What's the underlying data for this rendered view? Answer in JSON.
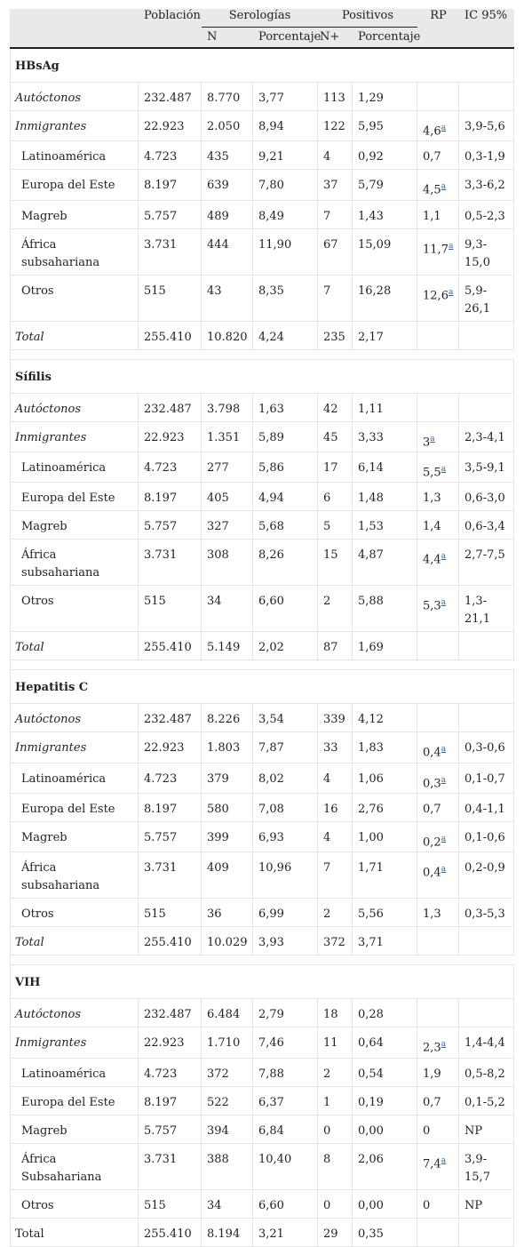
{
  "header": {
    "poblacion": "Población",
    "serologias": "Serologías",
    "positivos": "Positivos",
    "rp": "RP",
    "ic": "IC 95%",
    "n": "N",
    "porcentaje": "Porcentaje",
    "npos": "N+",
    "porcentaje2": "Porcentaje"
  },
  "footnote_marker": "a",
  "sections": [
    {
      "title": "HBsAg",
      "rows": [
        {
          "label": "Autóctonos",
          "style": "ital",
          "pob": "232.487",
          "n": "8.770",
          "pct": "3,77",
          "npos": "113",
          "pct2": "1,29",
          "rp": "",
          "rp_sup": false,
          "ic": ""
        },
        {
          "label": "Inmigrantes",
          "style": "ital",
          "pob": "22.923",
          "n": "2.050",
          "pct": "8,94",
          "npos": "122",
          "pct2": "5,95",
          "rp": "4,6",
          "rp_sup": true,
          "ic": "3,9-5,6"
        },
        {
          "label": "Latinoamérica",
          "style": "ind",
          "pob": "4.723",
          "n": "435",
          "pct": "9,21",
          "npos": "4",
          "pct2": "0,92",
          "rp": "0,7",
          "rp_sup": false,
          "ic": "0,3-1,9"
        },
        {
          "label": "Europa del Este",
          "style": "ind",
          "pob": "8.197",
          "n": "639",
          "pct": "7,80",
          "npos": "37",
          "pct2": "5,79",
          "rp": "4,5",
          "rp_sup": true,
          "ic": "3,3-6,2"
        },
        {
          "label": "Magreb",
          "style": "ind",
          "pob": "5.757",
          "n": "489",
          "pct": "8,49",
          "npos": "7",
          "pct2": "1,43",
          "rp": "1,1",
          "rp_sup": false,
          "ic": "0,5-2,3"
        },
        {
          "label": "África subsahariana",
          "style": "ind tall",
          "pob": "3.731",
          "n": "444",
          "pct": "11,90",
          "npos": "67",
          "pct2": "15,09",
          "rp": "11,7",
          "rp_sup": true,
          "ic": "9,3-15,0"
        },
        {
          "label": "Otros",
          "style": "ind tall",
          "pob": "515",
          "n": "43",
          "pct": "8,35",
          "npos": "7",
          "pct2": "16,28",
          "rp": "12,6",
          "rp_sup": true,
          "ic": "5,9-26,1"
        },
        {
          "label": "Total",
          "style": "ital",
          "pob": "255.410",
          "n": "10.820",
          "pct": "4,24",
          "npos": "235",
          "pct2": "2,17",
          "rp": "",
          "rp_sup": false,
          "ic": ""
        }
      ]
    },
    {
      "title": "Sífilis",
      "rows": [
        {
          "label": "Autóctonos",
          "style": "ital",
          "pob": "232.487",
          "n": "3.798",
          "pct": "1,63",
          "npos": "42",
          "pct2": "1,11",
          "rp": "",
          "rp_sup": false,
          "ic": ""
        },
        {
          "label": "Inmigrantes",
          "style": "ital",
          "pob": "22.923",
          "n": "1.351",
          "pct": "5,89",
          "npos": "45",
          "pct2": "3,33",
          "rp": "3",
          "rp_sup": true,
          "ic": "2,3-4,1"
        },
        {
          "label": "Latinoamérica",
          "style": "ind",
          "pob": "4.723",
          "n": "277",
          "pct": "5,86",
          "npos": "17",
          "pct2": "6,14",
          "rp": "5,5",
          "rp_sup": true,
          "ic": "3,5-9,1"
        },
        {
          "label": "Europa del Este",
          "style": "ind",
          "pob": "8.197",
          "n": "405",
          "pct": "4,94",
          "npos": "6",
          "pct2": "1,48",
          "rp": "1,3",
          "rp_sup": false,
          "ic": "0,6-3,0"
        },
        {
          "label": "Magreb",
          "style": "ind",
          "pob": "5.757",
          "n": "327",
          "pct": "5,68",
          "npos": "5",
          "pct2": "1,53",
          "rp": "1,4",
          "rp_sup": false,
          "ic": "0,6-3,4"
        },
        {
          "label": "África subsahariana",
          "style": "ind tall",
          "pob": "3.731",
          "n": "308",
          "pct": "8,26",
          "npos": "15",
          "pct2": "4,87",
          "rp": "4,4",
          "rp_sup": true,
          "ic": "2,7-7,5"
        },
        {
          "label": "Otros",
          "style": "ind tall",
          "pob": "515",
          "n": "34",
          "pct": "6,60",
          "npos": "2",
          "pct2": "5,88",
          "rp": "5,3",
          "rp_sup": true,
          "ic": "1,3-21,1"
        },
        {
          "label": "Total",
          "style": "ital",
          "pob": "255.410",
          "n": "5.149",
          "pct": "2,02",
          "npos": "87",
          "pct2": "1,69",
          "rp": "",
          "rp_sup": false,
          "ic": ""
        }
      ]
    },
    {
      "title": "Hepatitis C",
      "rows": [
        {
          "label": "Autóctonos",
          "style": "ital",
          "pob": "232.487",
          "n": "8.226",
          "pct": "3,54",
          "npos": "339",
          "pct2": "4,12",
          "rp": "",
          "rp_sup": false,
          "ic": ""
        },
        {
          "label": "Inmigrantes",
          "style": "ital",
          "pob": "22.923",
          "n": "1.803",
          "pct": "7,87",
          "npos": "33",
          "pct2": "1,83",
          "rp": "0,4",
          "rp_sup": true,
          "ic": "0,3-0,6"
        },
        {
          "label": "Latinoamérica",
          "style": "ind",
          "pob": "4.723",
          "n": "379",
          "pct": "8,02",
          "npos": "4",
          "pct2": "1,06",
          "rp": "0,3",
          "rp_sup": true,
          "ic": "0,1-0,7"
        },
        {
          "label": "Europa del Este",
          "style": "ind",
          "pob": "8.197",
          "n": "580",
          "pct": "7,08",
          "npos": "16",
          "pct2": "2,76",
          "rp": "0,7",
          "rp_sup": false,
          "ic": "0,4-1,1"
        },
        {
          "label": "Magreb",
          "style": "ind",
          "pob": "5.757",
          "n": "399",
          "pct": "6,93",
          "npos": "4",
          "pct2": "1,00",
          "rp": "0,2",
          "rp_sup": true,
          "ic": "0,1-0,6"
        },
        {
          "label": "África subsahariana",
          "style": "ind tall",
          "pob": "3.731",
          "n": "409",
          "pct": "10,96",
          "npos": "7",
          "pct2": "1,71",
          "rp": "0,4",
          "rp_sup": true,
          "ic": "0,2-0,9"
        },
        {
          "label": "Otros",
          "style": "ind",
          "pob": "515",
          "n": "36",
          "pct": "6,99",
          "npos": "2",
          "pct2": "5,56",
          "rp": "1,3",
          "rp_sup": false,
          "ic": "0,3-5,3"
        },
        {
          "label": "Total",
          "style": "ital",
          "pob": "255.410",
          "n": "10.029",
          "pct": "3,93",
          "npos": "372",
          "pct2": "3,71",
          "rp": "",
          "rp_sup": false,
          "ic": ""
        }
      ]
    },
    {
      "title": "VIH",
      "rows": [
        {
          "label": "Autóctonos",
          "style": "ital",
          "pob": "232.487",
          "n": "6.484",
          "pct": "2,79",
          "npos": "18",
          "pct2": "0,28",
          "rp": "",
          "rp_sup": false,
          "ic": ""
        },
        {
          "label": "Inmigrantes",
          "style": "ital",
          "pob": "22.923",
          "n": "1.710",
          "pct": "7,46",
          "npos": "11",
          "pct2": "0,64",
          "rp": "2,3",
          "rp_sup": true,
          "ic": "1,4-4,4"
        },
        {
          "label": "Latinoamérica",
          "style": "ind",
          "pob": "4.723",
          "n": "372",
          "pct": "7,88",
          "npos": "2",
          "pct2": "0,54",
          "rp": "1,9",
          "rp_sup": false,
          "ic": "0,5-8,2"
        },
        {
          "label": "Europa del Este",
          "style": "ind",
          "pob": "8.197",
          "n": "522",
          "pct": "6,37",
          "npos": "1",
          "pct2": "0,19",
          "rp": "0,7",
          "rp_sup": false,
          "ic": "0,1-5,2"
        },
        {
          "label": "Magreb",
          "style": "ind",
          "pob": "5.757",
          "n": "394",
          "pct": "6,84",
          "npos": "0",
          "pct2": "0,00",
          "rp": "0",
          "rp_sup": false,
          "ic": "NP"
        },
        {
          "label": "África Subsahariana",
          "style": "ind tall",
          "pob": "3.731",
          "n": "388",
          "pct": "10,40",
          "npos": "8",
          "pct2": "2,06",
          "rp": "7,4",
          "rp_sup": true,
          "ic": "3,9-15,7"
        },
        {
          "label": "Otros",
          "style": "ind",
          "pob": "515",
          "n": "34",
          "pct": "6,60",
          "npos": "0",
          "pct2": "0,00",
          "rp": "0",
          "rp_sup": false,
          "ic": "NP"
        },
        {
          "label": "Total",
          "style": "plain",
          "pob": "255.410",
          "n": "8.194",
          "pct": "3,21",
          "npos": "29",
          "pct2": "0,35",
          "rp": "",
          "rp_sup": false,
          "ic": ""
        }
      ]
    }
  ]
}
